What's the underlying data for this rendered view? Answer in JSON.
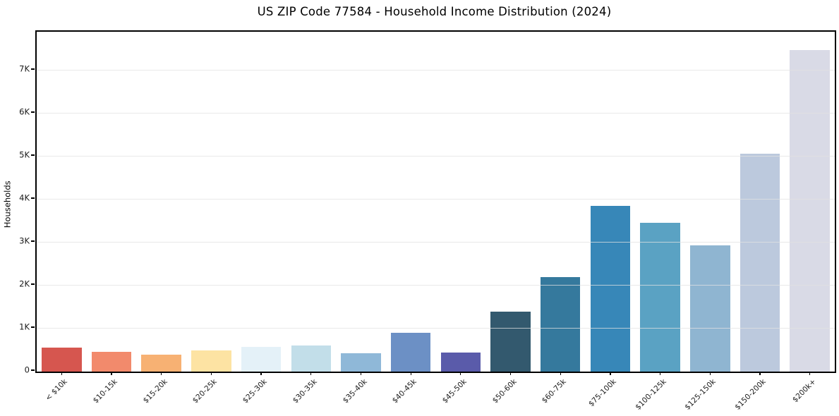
{
  "title": "US ZIP Code 77584 - Household Income Distribution (2024)",
  "chart_data": {
    "type": "bar",
    "title": "US ZIP Code 77584 - Household Income Distribution (2024)",
    "xlabel": "",
    "ylabel": "Households",
    "ylim": [
      0,
      7900
    ],
    "grid": "horizontal-light",
    "legend": "none",
    "categories": [
      "< $10k",
      "$10-15k",
      "$15-20k",
      "$20-25k",
      "$25-30k",
      "$30-35k",
      "$35-40k",
      "$40-45k",
      "$45-50k",
      "$50-60k",
      "$60-75k",
      "$75-100k",
      "$100-125k",
      "$125-150k",
      "$150-200k",
      "$200k+"
    ],
    "values": [
      550,
      460,
      400,
      500,
      580,
      610,
      430,
      900,
      450,
      1400,
      2200,
      3860,
      3460,
      2940,
      5060,
      7470
    ],
    "bar_colors": [
      "#d6564f",
      "#f28a6c",
      "#f7b173",
      "#fde3a3",
      "#e4f1f8",
      "#c2dee9",
      "#8fb8d8",
      "#6c90c5",
      "#5a5baa",
      "#33596e",
      "#35799d",
      "#3787b8",
      "#5aa2c3",
      "#8fb5d1",
      "#bcc9dd",
      "#d9dae6"
    ],
    "yticks": [
      {
        "value": 0,
        "label": "0"
      },
      {
        "value": 1000,
        "label": "1K"
      },
      {
        "value": 2000,
        "label": "2K"
      },
      {
        "value": 3000,
        "label": "3K"
      },
      {
        "value": 4000,
        "label": "4K"
      },
      {
        "value": 5000,
        "label": "5K"
      },
      {
        "value": 6000,
        "label": "6K"
      },
      {
        "value": 7000,
        "label": "7K"
      }
    ],
    "spine_color": "#000000",
    "gridline_color": "#e1e1e1",
    "background_color": "#ffffff"
  }
}
